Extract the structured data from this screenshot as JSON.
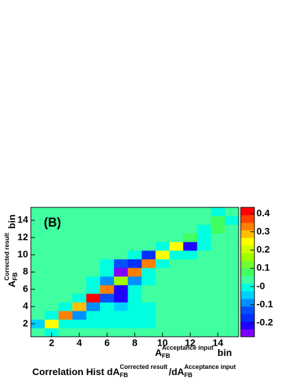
{
  "chart_data": {
    "type": "heatmap",
    "title": {
      "main": "Correlation Hist dA",
      "sub1": "FB",
      "sup1": "Corrected result",
      "sep": "/dA",
      "sub2": "FB",
      "sup2": "Acceptance input"
    },
    "annotation": "(B)",
    "x_label": {
      "base": "A",
      "sub": "FB",
      "sup": "Acceptance input",
      "unit": "bin"
    },
    "y_label": {
      "base": "A",
      "sub": "FB",
      "sup": "Corrected result",
      "unit": "bin"
    },
    "x": [
      1,
      2,
      3,
      4,
      5,
      6,
      7,
      8,
      9,
      10,
      11,
      12,
      13,
      14,
      15
    ],
    "y": [
      1,
      2,
      3,
      4,
      5,
      6,
      7,
      8,
      9,
      10,
      11,
      12,
      13,
      14,
      15
    ],
    "xlim": [
      0.5,
      15.5
    ],
    "ylim": [
      0.5,
      15.5
    ],
    "xticks": [
      2,
      4,
      6,
      8,
      10,
      12,
      14
    ],
    "yticks": [
      2,
      4,
      6,
      8,
      10,
      12,
      14
    ],
    "zlim": [
      -0.275,
      0.434
    ],
    "zticks": [
      0.4,
      0.3,
      0.2,
      0.1,
      {
        "value": 0,
        "label": "-0"
      },
      -0.1,
      -0.2
    ],
    "palette": [
      "#8000ff",
      "#2000ff",
      "#0030ff",
      "#0050ff",
      "#0090ff",
      "#00d0ff",
      "#00ffe0",
      "#40ffa0",
      "#40ff60",
      "#70ff30",
      "#a0ff00",
      "#d0ff00",
      "#ffff00",
      "#ffc000",
      "#ff8000",
      "#ff4000",
      "#ff0000"
    ],
    "z": [
      [
        0.03,
        -0.01,
        0.03,
        0.03,
        0.03,
        0.03,
        0.03,
        0.03,
        0.03,
        0.03,
        0.03,
        0.03,
        0.03,
        0.03,
        0.03
      ],
      [
        -0.03,
        0.25,
        -0.01,
        -0.01,
        -0.01,
        -0.01,
        -0.01,
        -0.01,
        -0.01,
        0.03,
        0.03,
        0.03,
        0.03,
        0.03,
        0.03
      ],
      [
        0.03,
        -0.01,
        0.33,
        -0.1,
        -0.01,
        -0.01,
        -0.01,
        -0.01,
        -0.01,
        0.03,
        0.03,
        0.03,
        0.03,
        0.03,
        0.03
      ],
      [
        0.03,
        0.03,
        -0.01,
        0.3,
        -0.1,
        -0.01,
        -0.03,
        -0.01,
        -0.01,
        0.03,
        0.03,
        0.03,
        0.03,
        0.03,
        0.03
      ],
      [
        0.03,
        0.03,
        0.03,
        -0.01,
        0.42,
        -0.12,
        -0.2,
        -0.01,
        0.03,
        0.03,
        0.03,
        0.03,
        0.03,
        0.03,
        0.03
      ],
      [
        0.03,
        0.03,
        0.03,
        0.03,
        -0.01,
        0.33,
        -0.2,
        -0.01,
        0.03,
        0.03,
        0.03,
        0.03,
        0.03,
        0.03,
        0.03
      ],
      [
        0.03,
        0.03,
        0.03,
        0.03,
        -0.01,
        -0.1,
        0.18,
        -0.08,
        -0.01,
        0.03,
        0.03,
        0.03,
        0.03,
        0.03,
        0.03
      ],
      [
        0.03,
        0.03,
        0.03,
        0.03,
        0.03,
        -0.01,
        -0.26,
        0.33,
        -0.01,
        0.03,
        0.03,
        0.03,
        0.03,
        0.03,
        0.03
      ],
      [
        0.03,
        0.03,
        0.03,
        0.03,
        0.03,
        -0.01,
        -0.12,
        -0.16,
        0.33,
        -0.01,
        0.03,
        0.03,
        0.03,
        0.03,
        0.03
      ],
      [
        0.03,
        0.03,
        0.03,
        0.03,
        0.03,
        0.03,
        0.03,
        -0.01,
        -0.16,
        0.25,
        -0.01,
        -0.01,
        0.03,
        0.03,
        0.03
      ],
      [
        0.03,
        0.03,
        0.03,
        0.03,
        0.03,
        0.03,
        0.03,
        0.03,
        0.03,
        -0.01,
        0.25,
        -0.2,
        -0.01,
        0.03,
        0.03
      ],
      [
        0.03,
        0.03,
        0.03,
        0.03,
        0.03,
        0.03,
        0.03,
        0.03,
        0.03,
        0.03,
        0.03,
        0.1,
        -0.01,
        0.03,
        0.03
      ],
      [
        0.03,
        0.03,
        0.03,
        0.03,
        0.03,
        0.03,
        0.03,
        0.03,
        0.03,
        0.03,
        0.03,
        0.03,
        -0.01,
        0.08,
        0.03
      ],
      [
        0.03,
        0.03,
        0.03,
        0.03,
        0.03,
        0.03,
        0.03,
        0.03,
        0.03,
        0.03,
        0.03,
        0.03,
        0.03,
        0.08,
        -0.01
      ],
      [
        0.03,
        0.03,
        0.03,
        0.03,
        0.03,
        0.03,
        0.03,
        0.03,
        0.03,
        0.03,
        0.03,
        0.03,
        0.03,
        -0.01,
        0.03
      ]
    ]
  }
}
